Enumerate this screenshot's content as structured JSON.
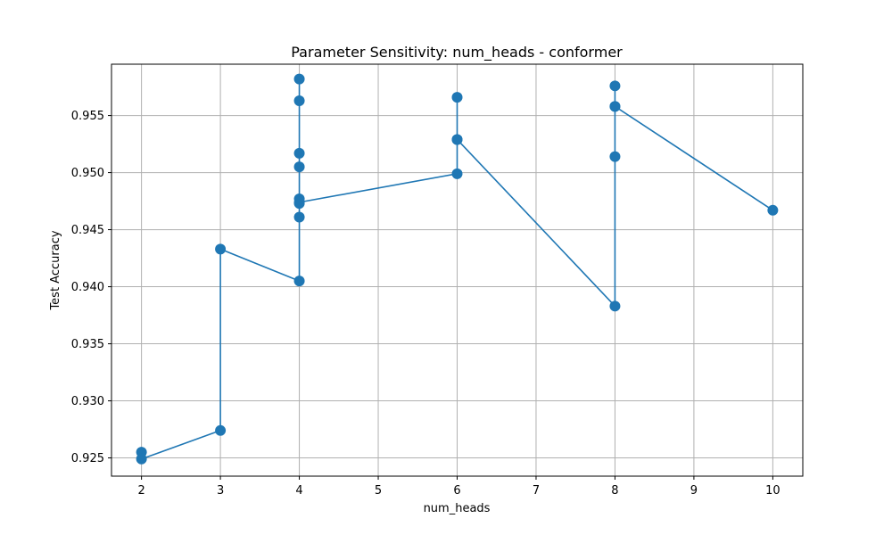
{
  "chart_data": {
    "type": "line",
    "title": "Parameter Sensitivity: num_heads - conformer",
    "xlabel": "num_heads",
    "ylabel": "Test Accuracy",
    "xlim": [
      1.62,
      10.38
    ],
    "ylim": [
      0.9234,
      0.9595
    ],
    "xticks": [
      2,
      3,
      4,
      5,
      6,
      7,
      8,
      9,
      10
    ],
    "yticks": [
      0.925,
      0.93,
      0.935,
      0.94,
      0.945,
      0.95,
      0.955
    ],
    "ytick_labels": [
      "0.925",
      "0.930",
      "0.935",
      "0.940",
      "0.945",
      "0.950",
      "0.955"
    ],
    "grid": true,
    "legend": "none",
    "series": [
      {
        "color": "#1f77b4",
        "marker": "circle",
        "points": [
          {
            "x": 2,
            "y": 0.9255
          },
          {
            "x": 2,
            "y": 0.9249
          },
          {
            "x": 3,
            "y": 0.9274
          },
          {
            "x": 3,
            "y": 0.9433
          },
          {
            "x": 4,
            "y": 0.9405
          },
          {
            "x": 4,
            "y": 0.9461
          },
          {
            "x": 4,
            "y": 0.9473
          },
          {
            "x": 4,
            "y": 0.9477
          },
          {
            "x": 4,
            "y": 0.9505
          },
          {
            "x": 4,
            "y": 0.9517
          },
          {
            "x": 4,
            "y": 0.9563
          },
          {
            "x": 4,
            "y": 0.9582
          },
          {
            "x": 4,
            "y": 0.9474
          },
          {
            "x": 6,
            "y": 0.9499
          },
          {
            "x": 6,
            "y": 0.9529
          },
          {
            "x": 6,
            "y": 0.9566
          },
          {
            "x": 6,
            "y": 0.9529
          },
          {
            "x": 8,
            "y": 0.9383
          },
          {
            "x": 8,
            "y": 0.9514
          },
          {
            "x": 8,
            "y": 0.9558
          },
          {
            "x": 8,
            "y": 0.9576
          },
          {
            "x": 8,
            "y": 0.9558
          },
          {
            "x": 10,
            "y": 0.9467
          }
        ]
      }
    ]
  }
}
